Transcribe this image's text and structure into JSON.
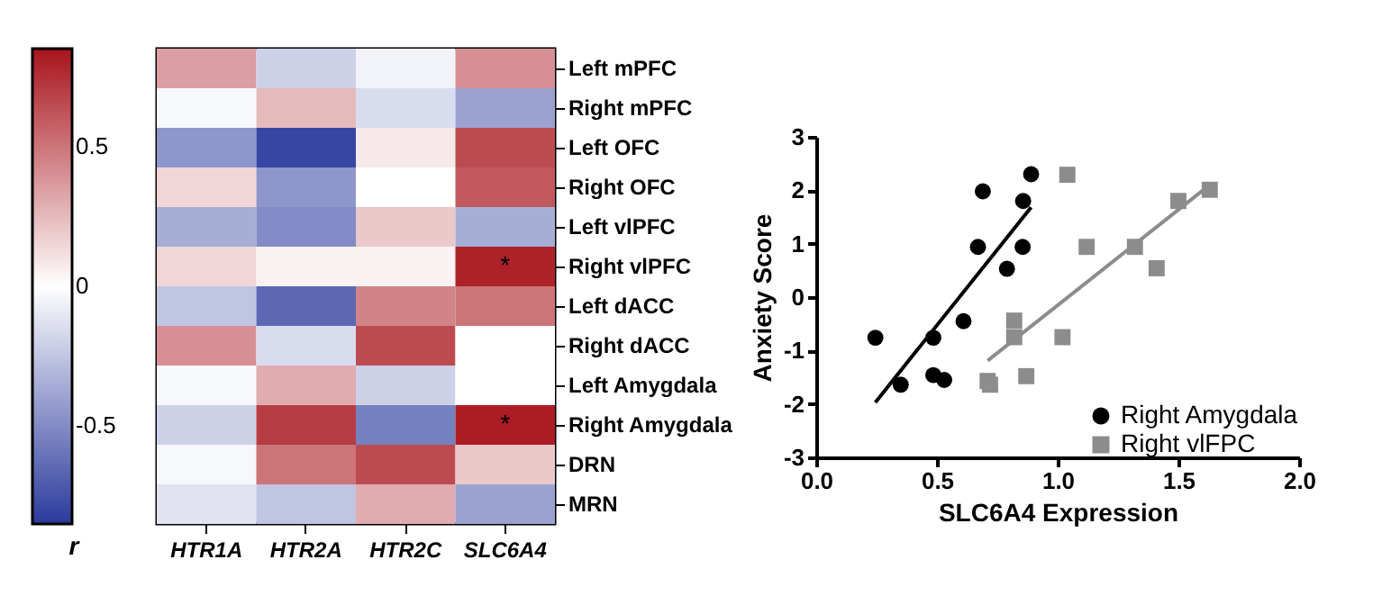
{
  "chart_data": [
    {
      "type": "heatmap",
      "clabel": "r",
      "categories": [
        "HTR1A",
        "HTR2A",
        "HTR2C",
        "SLC6A4"
      ],
      "y_categories": [
        "Left mPFC",
        "Right mPFC",
        "Left OFC",
        "Right OFC",
        "Left vlPFC",
        "Right vlPFC",
        "Left dACC",
        "Right dACC",
        "Left Amygdala",
        "Right Amygdala",
        "DRN",
        "MRN"
      ],
      "cells": [
        [
          0.35,
          -0.2,
          -0.05,
          0.4
        ],
        [
          -0.03,
          0.25,
          -0.15,
          -0.4
        ],
        [
          -0.45,
          -0.8,
          0.08,
          0.65
        ],
        [
          0.15,
          -0.45,
          0.0,
          0.6
        ],
        [
          -0.35,
          -0.5,
          0.2,
          -0.35
        ],
        [
          0.15,
          0.05,
          0.05,
          0.8
        ],
        [
          -0.25,
          -0.65,
          0.45,
          0.5
        ],
        [
          0.4,
          -0.15,
          0.65,
          0.0
        ],
        [
          -0.03,
          0.3,
          -0.2,
          0.0
        ],
        [
          -0.2,
          0.7,
          -0.55,
          0.82
        ],
        [
          -0.03,
          0.5,
          0.65,
          0.2
        ],
        [
          -0.12,
          -0.25,
          0.3,
          -0.4
        ]
      ],
      "cell_labels": [
        [
          null,
          null,
          null,
          null
        ],
        [
          null,
          null,
          null,
          null
        ],
        [
          null,
          null,
          null,
          null
        ],
        [
          null,
          null,
          null,
          null
        ],
        [
          null,
          null,
          null,
          null
        ],
        [
          null,
          null,
          null,
          "*"
        ],
        [
          null,
          null,
          null,
          null
        ],
        [
          null,
          null,
          null,
          null
        ],
        [
          null,
          null,
          null,
          null
        ],
        [
          null,
          null,
          null,
          "*"
        ],
        [
          null,
          null,
          null,
          null
        ],
        [
          null,
          null,
          null,
          null
        ]
      ],
      "clim": [
        -0.85,
        0.85
      ],
      "cticks": [
        -0.5,
        0,
        0.5
      ]
    },
    {
      "type": "scatter",
      "xlabel": "SLC6A4 Expression",
      "ylabel": "Anxiety Score",
      "xlim": [
        0,
        2
      ],
      "xticks": [
        {
          "value": 0,
          "label": "0.0"
        },
        {
          "value": 0.5,
          "label": "0.5"
        },
        {
          "value": 1,
          "label": "1.0"
        },
        {
          "value": 1.5,
          "label": "1.5"
        },
        {
          "value": 2,
          "label": "2.0"
        }
      ],
      "ylim": [
        -3,
        3
      ],
      "yticks": [
        -3,
        -2,
        -1,
        0,
        1,
        2,
        3
      ],
      "grid": false,
      "legend": "bottom right",
      "series": [
        {
          "name": "Right Amygdala",
          "color": "#000000",
          "marker": "circle",
          "x": [
            0.245,
            0.35,
            0.485,
            0.485,
            0.53,
            0.61,
            0.67,
            0.69,
            0.79,
            0.855,
            0.857,
            0.89
          ],
          "values": [
            -0.76,
            -1.64,
            -0.76,
            -1.46,
            -1.55,
            -0.45,
            0.94,
            1.98,
            0.53,
            0.94,
            1.8,
            2.3
          ]
        },
        {
          "name": "Right vlFPC",
          "color": "#8c8c8c",
          "marker": "square",
          "x": [
            0.71,
            0.72,
            0.82,
            0.82,
            0.87,
            1.02,
            1.04,
            1.12,
            1.32,
            1.41,
            1.5,
            1.63
          ],
          "values": [
            -1.57,
            -1.64,
            -0.44,
            -0.75,
            -1.48,
            -0.75,
            2.29,
            0.94,
            0.94,
            0.54,
            1.8,
            2.01
          ]
        },
        {
          "type": "line",
          "color": "#000000",
          "x": [
            0.245,
            0.89
          ],
          "values": [
            -1.97,
            1.68
          ]
        },
        {
          "type": "line",
          "color": "#8c8c8c",
          "x": [
            0.71,
            1.63
          ],
          "values": [
            -1.19,
            2.1
          ]
        }
      ]
    }
  ]
}
